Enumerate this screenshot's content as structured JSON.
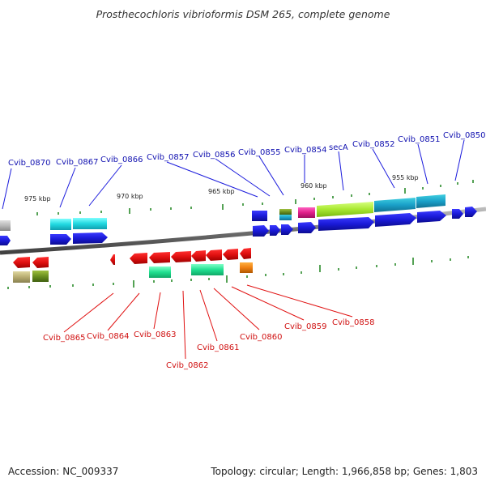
{
  "title": "Prosthecochloris vibrioformis DSM 265, complete genome",
  "accession": "Accession: NC_009337",
  "stats": "Topology: circular; Length: 1,966,858 bp; Genes: 1,803",
  "scale_labels": [
    "975 kbp",
    "970 kbp",
    "965 kbp",
    "960 kbp",
    "955 kbp"
  ],
  "top_labels": [
    "Cvib_0870",
    "Cvib_0867",
    "Cvib_0866",
    "Cvib_0857",
    "Cvib_0856",
    "Cvib_0855",
    "Cvib_0854",
    "secA",
    "Cvib_0852",
    "Cvib_0851",
    "Cvib_0850"
  ],
  "bottom_labels": [
    "Cvib_0865",
    "Cvib_0864",
    "Cvib_0863",
    "Cvib_0862",
    "Cvib_0861",
    "Cvib_0860",
    "Cvib_0859",
    "Cvib_0858"
  ],
  "colors": {
    "forward_gene": "#1a1adc",
    "reverse_gene": "#e01818",
    "top_label": "#1010b0",
    "bottom_label": "#d01010",
    "backbone": "#8a8a8a",
    "tick": "#2a8a2a"
  }
}
